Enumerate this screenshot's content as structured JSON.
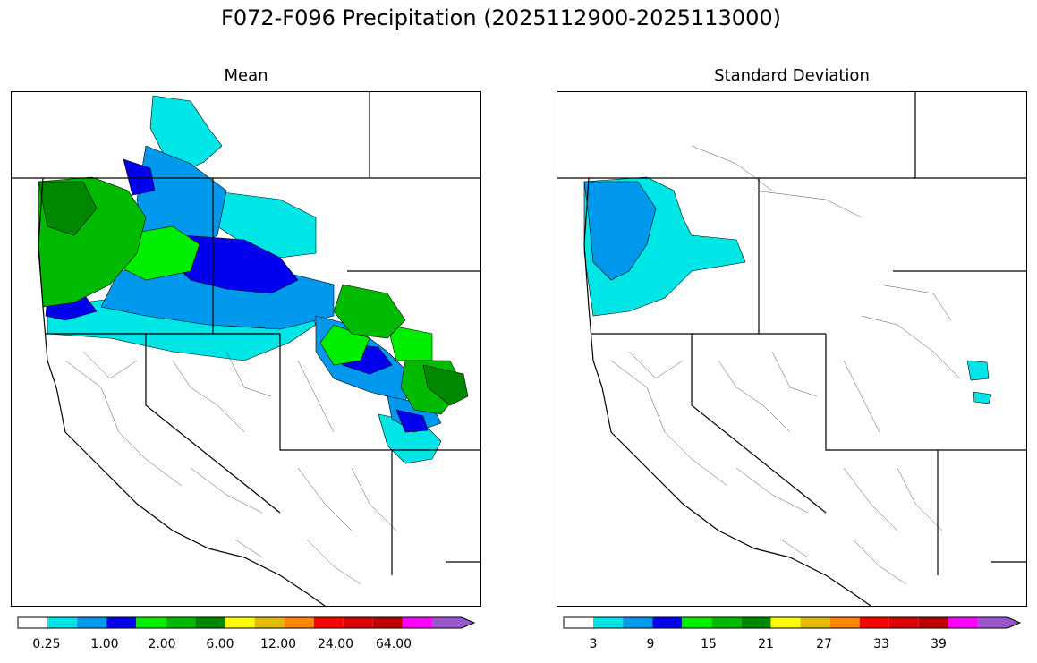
{
  "figure": {
    "title": "F072-F096 Precipitation (2025112900-2025113000)"
  },
  "panels": [
    {
      "title": "Mean",
      "colorbar": {
        "colors": [
          "#ffffff",
          "#00e5e5",
          "#0099ee",
          "#0000ee",
          "#00ee00",
          "#00bb00",
          "#008800",
          "#ffff00",
          "#e5bb00",
          "#ff8800",
          "#ff0000",
          "#dd0000",
          "#bb0000",
          "#ff00ff",
          "#9955cc"
        ],
        "extend": "max",
        "tick_labels": [
          "0.25",
          "1.00",
          "2.00",
          "6.00",
          "12.00",
          "24.00",
          "64.00"
        ]
      },
      "legend_classes_shown": [
        "#00e5e5",
        "#0099ee",
        "#0000ee",
        "#00ee00",
        "#00bb00",
        "#008800"
      ]
    },
    {
      "title": "Standard Deviation",
      "colorbar": {
        "colors": [
          "#ffffff",
          "#00e5e5",
          "#0099ee",
          "#0000ee",
          "#00ee00",
          "#00bb00",
          "#008800",
          "#ffff00",
          "#e5bb00",
          "#ff8800",
          "#ff0000",
          "#dd0000",
          "#bb0000",
          "#ff00ff",
          "#9955cc"
        ],
        "extend": "max",
        "tick_labels": [
          "3",
          "9",
          "15",
          "21",
          "27",
          "33",
          "39"
        ]
      },
      "legend_classes_shown": [
        "#00e5e5",
        "#0099ee"
      ]
    }
  ]
}
